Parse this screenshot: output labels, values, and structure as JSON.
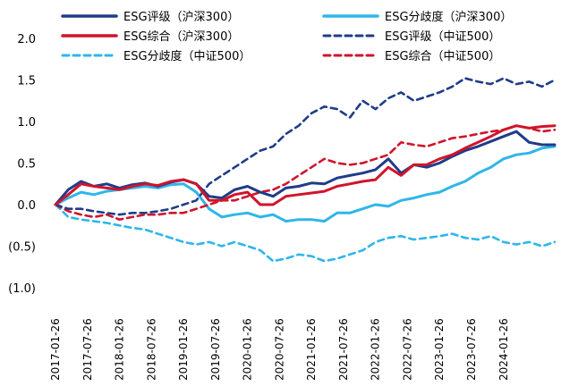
{
  "chart_data": {
    "type": "line",
    "title": "",
    "xlabel": "",
    "ylabel": "",
    "ylim": [
      -1.0,
      2.0
    ],
    "y_ticks": [
      -1.0,
      -0.5,
      0.0,
      0.5,
      1.0,
      1.5,
      2.0
    ],
    "y_tick_labels": [
      "(1.0)",
      "(0.5)",
      "0.0",
      "0.5",
      "1.0",
      "1.5",
      "2.0"
    ],
    "x_ticks": [
      "2017-01-26",
      "2017-07-26",
      "2018-01-26",
      "2018-07-26",
      "2019-01-26",
      "2019-07-26",
      "2020-01-26",
      "2020-07-26",
      "2021-01-26",
      "2021-07-26",
      "2022-01-26",
      "2022-07-26",
      "2023-01-26",
      "2023-07-26",
      "2024-01-26"
    ],
    "x_range": [
      0,
      15.6
    ],
    "grid": false,
    "legend_position": "top",
    "series": [
      {
        "name": "ESG评级（沪深300）",
        "color": "#1f3c88",
        "dash": "solid",
        "x": [
          0,
          0.4,
          0.8,
          1.2,
          1.6,
          2.0,
          2.4,
          2.8,
          3.2,
          3.6,
          4.0,
          4.4,
          4.8,
          5.2,
          5.6,
          6.0,
          6.4,
          6.8,
          7.2,
          7.6,
          8.0,
          8.4,
          8.8,
          9.2,
          9.6,
          10.0,
          10.4,
          10.8,
          11.2,
          11.6,
          12.0,
          12.4,
          12.8,
          13.2,
          13.6,
          14.0,
          14.4,
          14.8,
          15.2,
          15.6
        ],
        "y": [
          0.0,
          0.18,
          0.28,
          0.22,
          0.25,
          0.2,
          0.24,
          0.26,
          0.22,
          0.27,
          0.3,
          0.25,
          0.1,
          0.08,
          0.18,
          0.22,
          0.15,
          0.1,
          0.2,
          0.22,
          0.26,
          0.25,
          0.32,
          0.35,
          0.38,
          0.42,
          0.55,
          0.38,
          0.48,
          0.45,
          0.5,
          0.58,
          0.65,
          0.7,
          0.76,
          0.82,
          0.88,
          0.75,
          0.72,
          0.72
        ]
      },
      {
        "name": "ESG分歧度（沪深300）",
        "color": "#2eb6ea",
        "dash": "solid",
        "x": [
          0,
          0.4,
          0.8,
          1.2,
          1.6,
          2.0,
          2.4,
          2.8,
          3.2,
          3.6,
          4.0,
          4.4,
          4.8,
          5.2,
          5.6,
          6.0,
          6.4,
          6.8,
          7.2,
          7.6,
          8.0,
          8.4,
          8.8,
          9.2,
          9.6,
          10.0,
          10.4,
          10.8,
          11.2,
          11.6,
          12.0,
          12.4,
          12.8,
          13.2,
          13.6,
          14.0,
          14.4,
          14.8,
          15.2,
          15.6
        ],
        "y": [
          0.0,
          0.08,
          0.15,
          0.12,
          0.16,
          0.18,
          0.2,
          0.22,
          0.2,
          0.24,
          0.25,
          0.15,
          -0.05,
          -0.15,
          -0.12,
          -0.1,
          -0.15,
          -0.12,
          -0.2,
          -0.18,
          -0.18,
          -0.2,
          -0.1,
          -0.1,
          -0.05,
          0.0,
          -0.02,
          0.05,
          0.08,
          0.12,
          0.15,
          0.22,
          0.28,
          0.38,
          0.45,
          0.55,
          0.6,
          0.62,
          0.68,
          0.7
        ]
      },
      {
        "name": "ESG综合（沪深300）",
        "color": "#d0142c",
        "dash": "solid",
        "x": [
          0,
          0.4,
          0.8,
          1.2,
          1.6,
          2.0,
          2.4,
          2.8,
          3.2,
          3.6,
          4.0,
          4.4,
          4.8,
          5.2,
          5.6,
          6.0,
          6.4,
          6.8,
          7.2,
          7.6,
          8.0,
          8.4,
          8.8,
          9.2,
          9.6,
          10.0,
          10.4,
          10.8,
          11.2,
          11.6,
          12.0,
          12.4,
          12.8,
          13.2,
          13.6,
          14.0,
          14.4,
          14.8,
          15.2,
          15.6
        ],
        "y": [
          0.0,
          0.12,
          0.25,
          0.22,
          0.2,
          0.18,
          0.22,
          0.25,
          0.23,
          0.28,
          0.3,
          0.25,
          0.05,
          0.05,
          0.12,
          0.15,
          0.0,
          0.0,
          0.1,
          0.12,
          0.14,
          0.16,
          0.22,
          0.25,
          0.28,
          0.3,
          0.45,
          0.35,
          0.48,
          0.48,
          0.55,
          0.6,
          0.68,
          0.75,
          0.82,
          0.9,
          0.95,
          0.92,
          0.94,
          0.95
        ]
      },
      {
        "name": "ESG评级（中证500）",
        "color": "#1f3c88",
        "dash": "dashed",
        "x": [
          0,
          0.4,
          0.8,
          1.2,
          1.6,
          2.0,
          2.4,
          2.8,
          3.2,
          3.6,
          4.0,
          4.4,
          4.8,
          5.2,
          5.6,
          6.0,
          6.4,
          6.8,
          7.2,
          7.6,
          8.0,
          8.4,
          8.8,
          9.2,
          9.6,
          10.0,
          10.4,
          10.8,
          11.2,
          11.6,
          12.0,
          12.4,
          12.8,
          13.2,
          13.6,
          14.0,
          14.4,
          14.8,
          15.2,
          15.6
        ],
        "y": [
          0.0,
          -0.05,
          -0.05,
          -0.08,
          -0.1,
          -0.12,
          -0.1,
          -0.1,
          -0.08,
          -0.05,
          0.0,
          0.05,
          0.25,
          0.35,
          0.45,
          0.55,
          0.65,
          0.7,
          0.85,
          0.95,
          1.1,
          1.18,
          1.15,
          1.05,
          1.25,
          1.15,
          1.28,
          1.35,
          1.25,
          1.3,
          1.35,
          1.42,
          1.52,
          1.48,
          1.45,
          1.52,
          1.45,
          1.48,
          1.42,
          1.5
        ]
      },
      {
        "name": "ESG分歧度（中证500）",
        "color": "#2eb6ea",
        "dash": "dashed",
        "x": [
          0,
          0.4,
          0.8,
          1.2,
          1.6,
          2.0,
          2.4,
          2.8,
          3.2,
          3.6,
          4.0,
          4.4,
          4.8,
          5.2,
          5.6,
          6.0,
          6.4,
          6.8,
          7.2,
          7.6,
          8.0,
          8.4,
          8.8,
          9.2,
          9.6,
          10.0,
          10.4,
          10.8,
          11.2,
          11.6,
          12.0,
          12.4,
          12.8,
          13.2,
          13.6,
          14.0,
          14.4,
          14.8,
          15.2,
          15.6
        ],
        "y": [
          0.0,
          -0.15,
          -0.18,
          -0.2,
          -0.22,
          -0.25,
          -0.28,
          -0.3,
          -0.35,
          -0.4,
          -0.45,
          -0.48,
          -0.45,
          -0.5,
          -0.45,
          -0.5,
          -0.55,
          -0.68,
          -0.65,
          -0.6,
          -0.62,
          -0.68,
          -0.65,
          -0.6,
          -0.55,
          -0.45,
          -0.4,
          -0.38,
          -0.42,
          -0.4,
          -0.38,
          -0.35,
          -0.4,
          -0.42,
          -0.38,
          -0.45,
          -0.48,
          -0.45,
          -0.5,
          -0.45
        ]
      },
      {
        "name": "ESG综合（中证500）",
        "color": "#d0142c",
        "dash": "dashed",
        "x": [
          0,
          0.4,
          0.8,
          1.2,
          1.6,
          2.0,
          2.4,
          2.8,
          3.2,
          3.6,
          4.0,
          4.4,
          4.8,
          5.2,
          5.6,
          6.0,
          6.4,
          6.8,
          7.2,
          7.6,
          8.0,
          8.4,
          8.8,
          9.2,
          9.6,
          10.0,
          10.4,
          10.8,
          11.2,
          11.6,
          12.0,
          12.4,
          12.8,
          13.2,
          13.6,
          14.0,
          14.4,
          14.8,
          15.2,
          15.6
        ],
        "y": [
          0.0,
          -0.08,
          -0.12,
          -0.15,
          -0.12,
          -0.18,
          -0.15,
          -0.12,
          -0.12,
          -0.1,
          -0.1,
          -0.05,
          0.0,
          0.05,
          0.05,
          0.1,
          0.15,
          0.18,
          0.25,
          0.35,
          0.45,
          0.55,
          0.5,
          0.48,
          0.5,
          0.55,
          0.6,
          0.75,
          0.72,
          0.7,
          0.75,
          0.8,
          0.82,
          0.85,
          0.88,
          0.9,
          0.95,
          0.92,
          0.88,
          0.9
        ]
      }
    ]
  }
}
